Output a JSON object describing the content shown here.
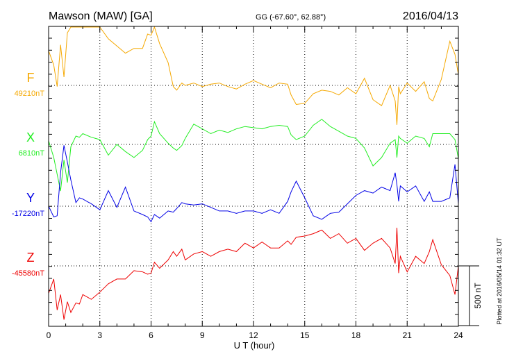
{
  "chart_data": {
    "type": "line",
    "title": "Mawson (MAW)  [GA]",
    "coordinates": "GG (-67.60°,  62.88°)",
    "date": "2016/04/13",
    "xlabel": "U T (hour)",
    "xlim": [
      0,
      24
    ],
    "x_ticks": [
      "0",
      "3",
      "6",
      "9",
      "12",
      "15",
      "18",
      "21",
      "24"
    ],
    "grid": true,
    "scale_bar": {
      "label": "500 nT",
      "value": 500
    },
    "plotted_note": "Plotted at 2016/05/14 01:32 UT",
    "series": [
      {
        "name": "F",
        "baseline_label": "49210nT",
        "baseline": 49210,
        "color": "#f5a800",
        "x": [
          0,
          0.3,
          0.5,
          0.7,
          0.9,
          1.1,
          1.3,
          1.6,
          1.8,
          2.0,
          2.5,
          3.0,
          3.5,
          4.0,
          4.5,
          5.0,
          5.5,
          5.8,
          6.0,
          6.2,
          6.5,
          7.0,
          7.3,
          7.5,
          7.8,
          8.0,
          8.5,
          9.0,
          9.5,
          10.0,
          10.5,
          11.0,
          11.5,
          12.0,
          12.5,
          13.0,
          13.5,
          14.0,
          14.2,
          14.5,
          15.0,
          15.5,
          16.0,
          16.5,
          17.0,
          17.5,
          18.0,
          18.5,
          19.0,
          19.5,
          20.0,
          20.3,
          20.4,
          20.5,
          20.6,
          21.0,
          21.5,
          22.0,
          22.3,
          22.5,
          23.0,
          23.5,
          23.8,
          24.0
        ],
        "values": [
          49500,
          49380,
          49200,
          49550,
          49280,
          49650,
          49700,
          49820,
          49770,
          49730,
          49760,
          49700,
          49600,
          49540,
          49480,
          49520,
          49520,
          49640,
          49630,
          49700,
          49560,
          49400,
          49200,
          49170,
          49230,
          49210,
          49230,
          49200,
          49220,
          49230,
          49200,
          49180,
          49220,
          49250,
          49220,
          49190,
          49230,
          49220,
          49130,
          49050,
          49060,
          49140,
          49170,
          49160,
          49130,
          49190,
          49140,
          49270,
          49090,
          49040,
          49210,
          49080,
          48880,
          49200,
          49140,
          49230,
          49160,
          49240,
          49100,
          49080,
          49260,
          49580,
          49470,
          49300
        ]
      },
      {
        "name": "X",
        "baseline_label": "6810nT",
        "baseline": 6810,
        "color": "#22ee22",
        "x": [
          0,
          0.3,
          0.5,
          0.7,
          0.9,
          1.1,
          1.3,
          1.6,
          1.8,
          2.0,
          2.5,
          3.0,
          3.5,
          4.0,
          4.5,
          5.0,
          5.5,
          5.8,
          6.0,
          6.2,
          6.5,
          7.0,
          7.3,
          7.5,
          7.8,
          8.0,
          8.5,
          9.0,
          9.5,
          10.0,
          10.5,
          11.0,
          11.5,
          12.0,
          12.5,
          13.0,
          13.5,
          14.0,
          14.2,
          14.5,
          15.0,
          15.5,
          16.0,
          16.5,
          17.0,
          17.5,
          18.0,
          18.5,
          19.0,
          19.5,
          20.0,
          20.3,
          20.4,
          20.5,
          20.6,
          21.0,
          21.5,
          22.0,
          22.3,
          22.5,
          23.0,
          23.5,
          23.8,
          24.0
        ],
        "values": [
          6840,
          6700,
          6560,
          6420,
          6680,
          6490,
          6790,
          6880,
          6870,
          6900,
          6870,
          6850,
          6720,
          6810,
          6750,
          6700,
          6760,
          6850,
          6880,
          7000,
          6900,
          6820,
          6780,
          6760,
          6800,
          6860,
          6980,
          6940,
          6900,
          6930,
          6910,
          6940,
          6960,
          6950,
          6940,
          6960,
          6970,
          6960,
          6890,
          6850,
          6880,
          6970,
          7020,
          6960,
          6920,
          6880,
          6860,
          6780,
          6630,
          6700,
          6820,
          6850,
          6700,
          6880,
          6860,
          6820,
          6880,
          6860,
          6790,
          6900,
          6900,
          6900,
          6850,
          6690
        ]
      },
      {
        "name": "Y",
        "baseline_label": "-17220nT",
        "baseline": -17220,
        "color": "#0000e6",
        "x": [
          0,
          0.3,
          0.5,
          0.7,
          0.9,
          1.1,
          1.3,
          1.6,
          1.8,
          2.0,
          2.5,
          3.0,
          3.5,
          4.0,
          4.5,
          5.0,
          5.5,
          5.8,
          6.0,
          6.2,
          6.5,
          7.0,
          7.3,
          7.5,
          7.8,
          8.0,
          8.5,
          9.0,
          9.5,
          10.0,
          10.5,
          11.0,
          11.5,
          12.0,
          12.5,
          13.0,
          13.5,
          14.0,
          14.2,
          14.5,
          15.0,
          15.5,
          16.0,
          16.5,
          17.0,
          17.5,
          18.0,
          18.5,
          19.0,
          19.5,
          20.0,
          20.3,
          20.4,
          20.5,
          20.6,
          21.0,
          21.5,
          22.0,
          22.3,
          22.5,
          23.0,
          23.5,
          23.8,
          24.0
        ],
        "values": [
          -17220,
          -17310,
          -17300,
          -16940,
          -16710,
          -16850,
          -17000,
          -17190,
          -17150,
          -17160,
          -17200,
          -17250,
          -17090,
          -17230,
          -17060,
          -17260,
          -17290,
          -17310,
          -17350,
          -17290,
          -17320,
          -17260,
          -17270,
          -17240,
          -17190,
          -17200,
          -17210,
          -17200,
          -17230,
          -17260,
          -17260,
          -17280,
          -17260,
          -17260,
          -17280,
          -17250,
          -17280,
          -17180,
          -17100,
          -17010,
          -17150,
          -17300,
          -17330,
          -17280,
          -17270,
          -17200,
          -17130,
          -17090,
          -17110,
          -17060,
          -17090,
          -16940,
          -17040,
          -17180,
          -17050,
          -17100,
          -17050,
          -17180,
          -17100,
          -17180,
          -17180,
          -17150,
          -16870,
          -17200
        ]
      },
      {
        "name": "Z",
        "baseline_label": "-45580nT",
        "baseline": -45580,
        "color": "#ee0000",
        "x": [
          0,
          0.3,
          0.5,
          0.7,
          0.9,
          1.1,
          1.3,
          1.6,
          1.8,
          2.0,
          2.5,
          3.0,
          3.5,
          4.0,
          4.5,
          5.0,
          5.5,
          5.8,
          6.0,
          6.2,
          6.5,
          7.0,
          7.3,
          7.5,
          7.8,
          8.0,
          8.5,
          9.0,
          9.5,
          10.0,
          10.5,
          11.0,
          11.5,
          12.0,
          12.5,
          13.0,
          13.5,
          14.0,
          14.2,
          14.5,
          15.0,
          15.5,
          16.0,
          16.5,
          17.0,
          17.5,
          18.0,
          18.5,
          19.0,
          19.5,
          20.0,
          20.3,
          20.4,
          20.5,
          20.6,
          21.0,
          21.5,
          22.0,
          22.3,
          22.5,
          23.0,
          23.5,
          23.8,
          24.0
        ],
        "values": [
          -45810,
          -45690,
          -45950,
          -45820,
          -46030,
          -45880,
          -45970,
          -45890,
          -45900,
          -45820,
          -45860,
          -45800,
          -45730,
          -45690,
          -45690,
          -45620,
          -45630,
          -45650,
          -45640,
          -45550,
          -45600,
          -45530,
          -45460,
          -45500,
          -45440,
          -45530,
          -45480,
          -45460,
          -45500,
          -45460,
          -45440,
          -45460,
          -45390,
          -45430,
          -45380,
          -45430,
          -45430,
          -45370,
          -45400,
          -45340,
          -45330,
          -45310,
          -45280,
          -45350,
          -45310,
          -45390,
          -45350,
          -45450,
          -45390,
          -45350,
          -45430,
          -45560,
          -45260,
          -45640,
          -45500,
          -45630,
          -45500,
          -45560,
          -45460,
          -45360,
          -45570,
          -45660,
          -45820,
          -45580
        ]
      }
    ]
  }
}
